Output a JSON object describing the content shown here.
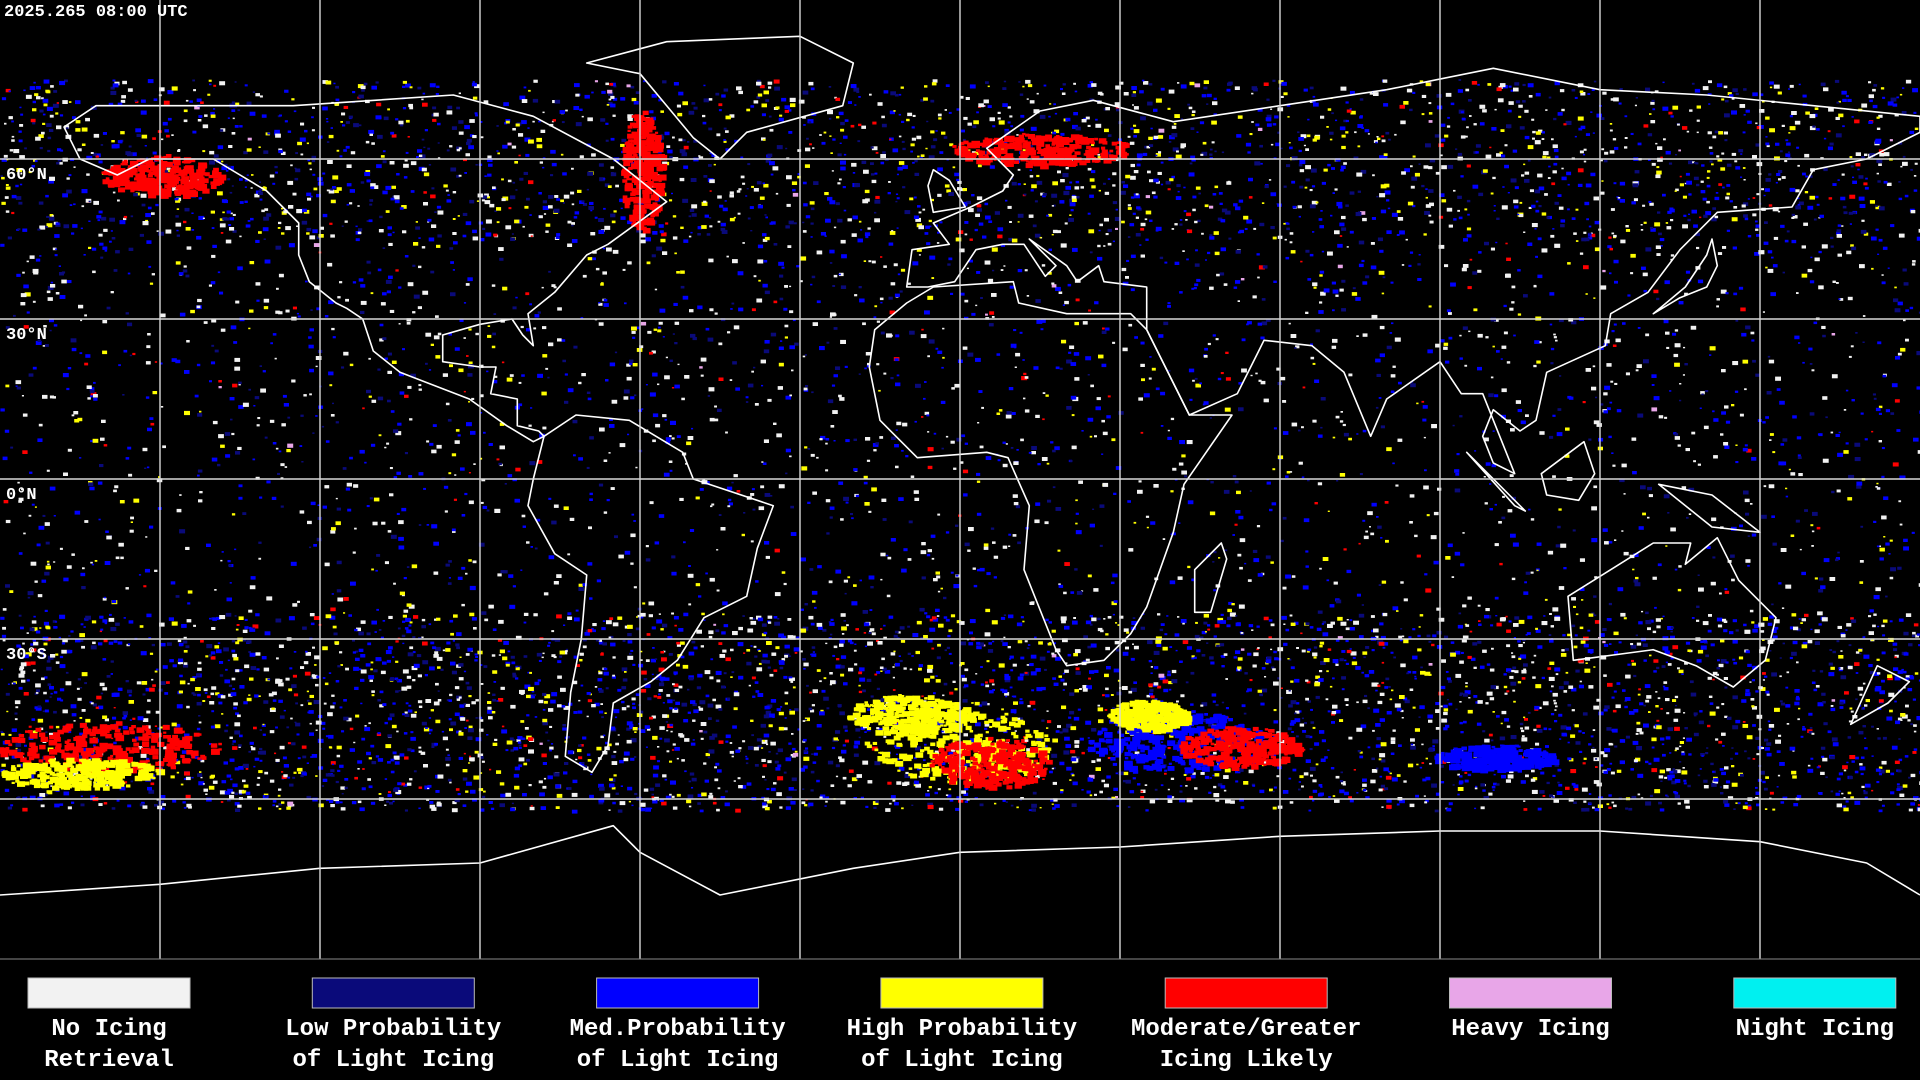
{
  "timestamp": "2025.265 08:00 UTC",
  "latitude_labels": [
    "60°N",
    "30°N",
    "0°N",
    "30°S"
  ],
  "legend": [
    {
      "label": [
        "No Icing",
        "Retrieval"
      ],
      "color": "#f2f2f2"
    },
    {
      "label": [
        "Low Probability",
        "of Light Icing"
      ],
      "color": "#0a0a7a"
    },
    {
      "label": [
        "Med.Probability",
        "of Light Icing"
      ],
      "color": "#0000ff"
    },
    {
      "label": [
        "High Probability",
        "of Light Icing"
      ],
      "color": "#ffff00"
    },
    {
      "label": [
        "Moderate/Greater",
        "Icing Likely"
      ],
      "color": "#ff0000"
    },
    {
      "label": [
        "Heavy Icing"
      ],
      "color": "#e8a6e8"
    },
    {
      "label": [
        "Night Icing"
      ],
      "color": "#00f0f0"
    }
  ]
}
